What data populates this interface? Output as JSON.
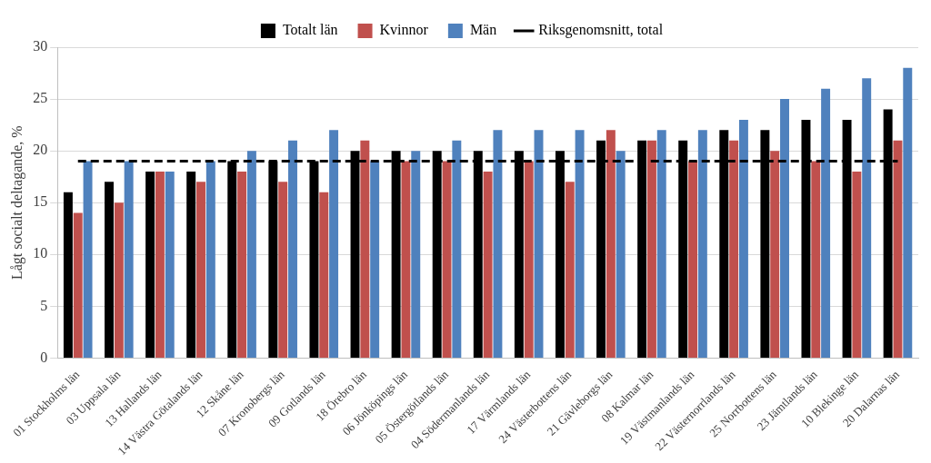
{
  "chart_data": {
    "type": "bar",
    "y_label": "Lågt socialt deltagande, %",
    "categories": [
      "01 Stockholms län",
      "03 Uppsala län",
      "13 Hallands län",
      "14 Västra Götalands län",
      "12 Skåne län",
      "07 Kronobergs län",
      "09 Gotlands län",
      "18 Örebro län",
      "06 Jönköpings län",
      "05 Östergötlands län",
      "04 Södermanlands län",
      "17 Värmlands län",
      "24 Västerbottens län",
      "21 Gävleborgs län",
      "08 Kalmar län",
      "19 Västmanlands län",
      "22 Västernorrlands län",
      "25 Norrbottens län",
      "23 Jämtlands län",
      "10 Blekinge län",
      "20 Dalarnas län"
    ],
    "series": [
      {
        "name": "Totalt län",
        "color": "#000000",
        "values": [
          16,
          17,
          18,
          18,
          19,
          19,
          19,
          20,
          20,
          20,
          20,
          20,
          20,
          21,
          21,
          21,
          22,
          22,
          23,
          23,
          24
        ]
      },
      {
        "name": "Kvinnor",
        "color": "#c0504d",
        "values": [
          14,
          15,
          18,
          17,
          18,
          17,
          16,
          21,
          19,
          19,
          18,
          19,
          17,
          22,
          21,
          19,
          21,
          20,
          19,
          18,
          21
        ]
      },
      {
        "name": "Män",
        "color": "#4f81bd",
        "values": [
          19,
          19,
          18,
          19,
          20,
          21,
          22,
          19,
          20,
          21,
          22,
          22,
          22,
          20,
          22,
          22,
          23,
          25,
          26,
          27,
          28
        ]
      },
      {
        "name": "Riksgenomsnitt, total",
        "type": "line",
        "line_style": "dashed",
        "marker": "none",
        "color": "#000000",
        "values": [
          19,
          19,
          19,
          19,
          19,
          19,
          19,
          19,
          19,
          19,
          19,
          19,
          19,
          19,
          19,
          19,
          19,
          19,
          19,
          19,
          19
        ]
      }
    ],
    "ylim": [
      0,
      30
    ],
    "yticks": [
      0,
      5,
      10,
      15,
      20,
      25,
      30
    ],
    "grid": true,
    "legend": "top"
  }
}
